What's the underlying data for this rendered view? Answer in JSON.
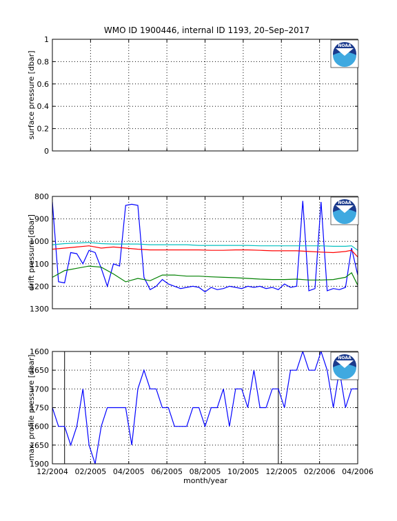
{
  "title": "WMO ID 1900446, internal ID 1193, 20–Sep–2017",
  "xlabel": "month/year",
  "x_ticks": [
    "12/2004",
    "02/2005",
    "04/2005",
    "06/2005",
    "08/2005",
    "10/2005",
    "12/2005",
    "02/2006",
    "04/2006"
  ],
  "logo_text": "NOAA",
  "colors": {
    "blue": "#0000ff",
    "red": "#ff0000",
    "green": "#008000",
    "cyan": "#00bfbf",
    "black": "#000000"
  },
  "chart_data": [
    {
      "type": "line",
      "panel": "surface",
      "ylabel": "surface pressure [dbar]",
      "ylim": [
        0,
        1
      ],
      "y_reversed": false,
      "y_ticks": [
        "0",
        "0.2",
        "0.4",
        "0.6",
        "0.8",
        "1"
      ],
      "grid": true,
      "series": []
    },
    {
      "type": "line",
      "panel": "drift",
      "ylabel": "drift pressure [dbar]",
      "ylim": [
        800,
        1300
      ],
      "y_reversed": true,
      "y_ticks": [
        "800",
        "900",
        "1000",
        "1100",
        "1200",
        "1300"
      ],
      "grid": true,
      "x_range": [
        1,
        51
      ],
      "series": [
        {
          "color": "blue",
          "x": [
            1,
            2,
            3,
            4,
            5,
            6,
            7,
            8,
            9,
            10,
            11,
            12,
            13,
            14,
            15,
            16,
            17,
            18,
            19,
            20,
            21,
            22,
            23,
            24,
            25,
            26,
            27,
            28,
            29,
            30,
            31,
            32,
            33,
            34,
            35,
            36,
            37,
            38,
            39,
            40,
            41,
            42,
            43,
            44,
            45,
            46,
            47,
            48,
            49,
            50,
            51
          ],
          "values": [
            825,
            1180,
            1185,
            1050,
            1055,
            1100,
            1040,
            1050,
            1120,
            1200,
            1100,
            1110,
            840,
            835,
            840,
            1160,
            1215,
            1200,
            1170,
            1190,
            1200,
            1210,
            1205,
            1200,
            1205,
            1225,
            1205,
            1215,
            1210,
            1200,
            1205,
            1210,
            1200,
            1205,
            1200,
            1210,
            1205,
            1215,
            1190,
            1205,
            1200,
            820,
            1220,
            1210,
            825,
            1220,
            1210,
            1215,
            1205,
            1030,
            1150
          ]
        },
        {
          "color": "green",
          "x": [
            1,
            3,
            5,
            7,
            9,
            11,
            13,
            15,
            17,
            19,
            21,
            23,
            25,
            27,
            29,
            31,
            33,
            35,
            37,
            39,
            41,
            43,
            45,
            47,
            49,
            50,
            51
          ],
          "values": [
            1160,
            1130,
            1120,
            1110,
            1115,
            1145,
            1180,
            1165,
            1175,
            1150,
            1150,
            1155,
            1155,
            1158,
            1160,
            1162,
            1165,
            1168,
            1170,
            1170,
            1168,
            1172,
            1172,
            1170,
            1160,
            1140,
            1195
          ]
        },
        {
          "color": "red",
          "x": [
            1,
            3,
            5,
            7,
            9,
            11,
            13,
            15,
            17,
            19,
            21,
            23,
            25,
            27,
            29,
            31,
            33,
            35,
            37,
            39,
            41,
            43,
            45,
            47,
            49,
            50,
            51
          ],
          "values": [
            1035,
            1030,
            1025,
            1020,
            1030,
            1025,
            1030,
            1035,
            1038,
            1038,
            1038,
            1038,
            1038,
            1040,
            1040,
            1038,
            1038,
            1040,
            1042,
            1042,
            1042,
            1045,
            1048,
            1050,
            1045,
            1040,
            1070
          ]
        },
        {
          "color": "cyan",
          "x": [
            1,
            3,
            5,
            7,
            9,
            11,
            13,
            15,
            17,
            19,
            21,
            23,
            25,
            27,
            29,
            31,
            33,
            35,
            37,
            39,
            41,
            43,
            45,
            47,
            49,
            50,
            51
          ],
          "values": [
            1015,
            1010,
            1008,
            1005,
            1010,
            1012,
            1012,
            1012,
            1015,
            1015,
            1015,
            1015,
            1018,
            1018,
            1018,
            1018,
            1018,
            1020,
            1020,
            1020,
            1020,
            1020,
            1020,
            1022,
            1022,
            1020,
            1040
          ]
        }
      ]
    },
    {
      "type": "line",
      "panel": "max_profile",
      "ylabel": "max. profile pressure [dbar]",
      "ylim": [
        1600,
        1900
      ],
      "y_reversed": true,
      "y_ticks": [
        "1600",
        "1650",
        "1700",
        "1750",
        "1800",
        "1850",
        "1900"
      ],
      "y_tick_labels": [
        "1600",
        "1650",
        "1700",
        "1750",
        "1600",
        "1650",
        "1900"
      ],
      "grid": true,
      "x_range": [
        1,
        51
      ],
      "vlines_x": [
        3,
        38
      ],
      "series": [
        {
          "color": "blue",
          "x": [
            1,
            2,
            3,
            4,
            5,
            6,
            7,
            8,
            9,
            10,
            11,
            12,
            13,
            14,
            15,
            16,
            17,
            18,
            19,
            20,
            21,
            22,
            23,
            24,
            25,
            26,
            27,
            28,
            29,
            30,
            31,
            32,
            33,
            34,
            35,
            36,
            37,
            38,
            39,
            40,
            41,
            42,
            43,
            44,
            45,
            46,
            47,
            48,
            49,
            50,
            51
          ],
          "values": [
            1750,
            1800,
            1800,
            1850,
            1800,
            1700,
            1850,
            1900,
            1800,
            1750,
            1750,
            1750,
            1750,
            1850,
            1700,
            1650,
            1700,
            1700,
            1750,
            1750,
            1800,
            1800,
            1800,
            1750,
            1750,
            1800,
            1750,
            1750,
            1700,
            1800,
            1700,
            1700,
            1750,
            1650,
            1750,
            1750,
            1700,
            1700,
            1750,
            1650,
            1650,
            1600,
            1650,
            1650,
            1600,
            1650,
            1750,
            1650,
            1750,
            1700,
            1700
          ]
        }
      ]
    }
  ]
}
